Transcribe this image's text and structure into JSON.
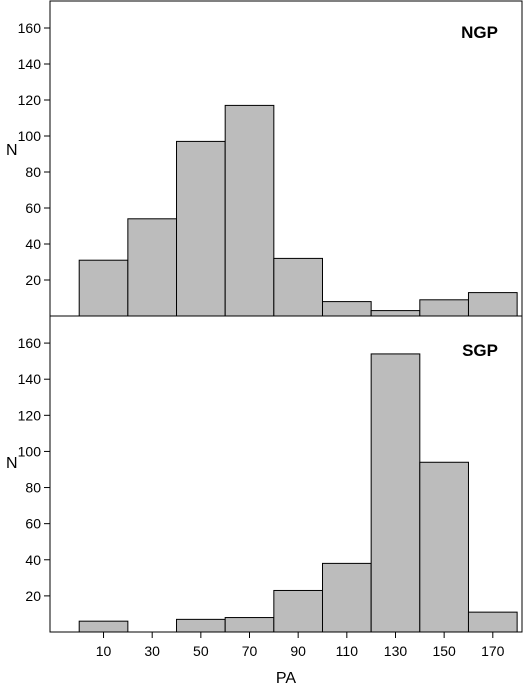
{
  "colors": {
    "bar_fill": "#bcbcbc",
    "bar_stroke": "#000000",
    "axis": "#000000",
    "background": "#ffffff"
  },
  "chart_data": [
    {
      "type": "bar",
      "title": "NGP",
      "xlabel": "",
      "ylabel": "N",
      "bin_edges": [
        0,
        20,
        40,
        60,
        80,
        100,
        120,
        140,
        160,
        180
      ],
      "categories": [
        "10",
        "30",
        "50",
        "70",
        "90",
        "110",
        "130",
        "150",
        "170"
      ],
      "values": [
        31,
        54,
        97,
        117,
        32,
        8,
        3,
        9,
        13
      ],
      "xlim": [
        -12,
        182
      ],
      "ylim": [
        0,
        175
      ],
      "yticks": [
        20,
        40,
        60,
        80,
        100,
        120,
        140,
        160
      ],
      "grid": false
    },
    {
      "type": "bar",
      "title": "SGP",
      "xlabel": "PA",
      "ylabel": "N",
      "bin_edges": [
        0,
        20,
        40,
        60,
        80,
        100,
        120,
        140,
        160,
        180
      ],
      "categories": [
        "10",
        "30",
        "50",
        "70",
        "90",
        "110",
        "130",
        "150",
        "170"
      ],
      "values": [
        6,
        0,
        7,
        8,
        23,
        38,
        154,
        94,
        11
      ],
      "xlim": [
        -12,
        182
      ],
      "ylim": [
        0,
        175
      ],
      "yticks": [
        20,
        40,
        60,
        80,
        100,
        120,
        140,
        160
      ],
      "xticks": [
        10,
        30,
        50,
        70,
        90,
        110,
        130,
        150,
        170
      ],
      "grid": false
    }
  ]
}
